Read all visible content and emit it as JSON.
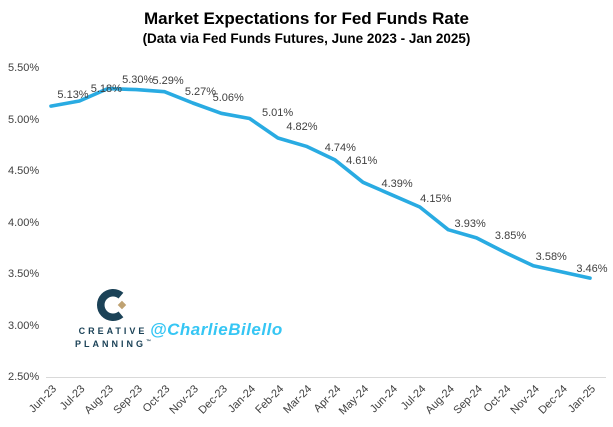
{
  "header": {
    "title": "Market Expectations for Fed Funds Rate",
    "subtitle": "(Data via Fed Funds Futures, June 2023 - Jan 2025)"
  },
  "branding": {
    "handle": "@CharlieBilello",
    "logo_line1": "CREATIVE",
    "logo_line2": "PLANNING",
    "logo_tm": "™",
    "logo_navy": "#1b4257",
    "logo_gold": "#bfa272",
    "handle_color": "#36c6f4"
  },
  "chart_data": {
    "type": "line",
    "title": "Market Expectations for Fed Funds Rate",
    "subtitle": "(Data via Fed Funds Futures, June 2023 - Jan 2025)",
    "x": [
      "Jun-23",
      "Jul-23",
      "Aug-23",
      "Sep-23",
      "Oct-23",
      "Nov-23",
      "Dec-23",
      "Jan-24",
      "Feb-24",
      "Mar-24",
      "Apr-24",
      "May-24",
      "Jun-24",
      "Jul-24",
      "Aug-24",
      "Sep-24",
      "Oct-24",
      "Nov-24",
      "Dec-24",
      "Jan-25"
    ],
    "values": [
      5.13,
      5.18,
      5.3,
      5.29,
      5.27,
      5.16,
      5.06,
      5.01,
      4.82,
      4.74,
      4.61,
      4.39,
      4.27,
      4.15,
      3.93,
      3.85,
      3.71,
      3.58,
      3.52,
      3.46
    ],
    "point_labels": [
      "5.13%",
      "5.18%",
      "5.30%",
      "5.29%",
      "5.27%",
      null,
      "5.06%",
      "5.01%",
      "4.82%",
      "4.74%",
      "4.61%",
      "4.39%",
      null,
      "4.15%",
      "3.93%",
      "3.85%",
      null,
      "3.58%",
      null,
      "3.46%"
    ],
    "label_offsets": [
      [
        22,
        -11
      ],
      [
        27,
        -12
      ],
      [
        30,
        -9
      ],
      [
        32,
        -9
      ],
      [
        36,
        0
      ],
      null,
      [
        7,
        -15
      ],
      [
        28,
        -5
      ],
      [
        24,
        -11
      ],
      [
        34,
        2
      ],
      [
        27,
        1
      ],
      [
        34,
        2
      ],
      null,
      [
        16,
        -8
      ],
      [
        22,
        -6
      ],
      [
        34,
        -2
      ],
      null,
      [
        18,
        -9
      ],
      null,
      [
        2,
        -9
      ]
    ],
    "y_ticks": [
      "5.50%",
      "5.00%",
      "4.50%",
      "4.00%",
      "3.50%",
      "3.00%",
      "2.50%"
    ],
    "ylim": [
      2.5,
      5.5
    ],
    "xlabel": "",
    "ylabel": "",
    "grid": false,
    "legend": "none",
    "line_color": "#29abe2",
    "label_color": "#404040"
  }
}
